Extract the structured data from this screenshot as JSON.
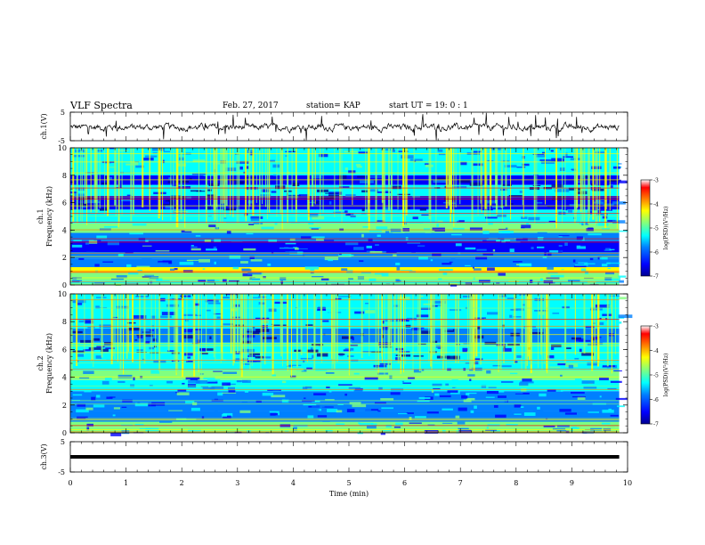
{
  "header": {
    "title": "VLF Spectra",
    "date": "Feb. 27, 2017",
    "station": "station= KAP",
    "start": "start  UT =   19: 0  : 1"
  },
  "chart_data": [
    {
      "type": "line",
      "panel": "waveform-ch1",
      "ylabel": "ch.1(V)",
      "ylim": [
        -5,
        5
      ],
      "y_ticks": [
        "5",
        "-5"
      ],
      "x_range_min": [
        0,
        9.85
      ],
      "description_values": "noisy waveform around -0.3 V",
      "line_color": "#000000"
    },
    {
      "type": "heatmap",
      "panel": "spectrogram-ch1",
      "ylabel_line1": "ch.1",
      "ylabel_line2": "Frequency (kHz)",
      "ylim": [
        0,
        10
      ],
      "y_ticks": [
        "0",
        "2",
        "4",
        "6",
        "8",
        "10"
      ],
      "x_range_min": [
        0,
        9.85
      ],
      "colorbar": {
        "label": "log(PSD)(V²/Hz)",
        "range": [
          -7,
          -3
        ],
        "ticks": [
          "-3",
          "-4",
          "-5",
          "-6",
          "-7"
        ]
      }
    },
    {
      "type": "heatmap",
      "panel": "spectrogram-ch2",
      "ylabel_line1": "ch.2",
      "ylabel_line2": "Frequency (kHz)",
      "ylim": [
        0,
        10
      ],
      "y_ticks": [
        "0",
        "2",
        "4",
        "6",
        "8",
        "10"
      ],
      "x_range_min": [
        0,
        9.85
      ],
      "colorbar": {
        "label": "log(PSD)(V²/Hz)",
        "range": [
          -7,
          -3
        ],
        "ticks": [
          "-3",
          "-4",
          "-5",
          "-6",
          "-7"
        ]
      }
    },
    {
      "type": "line",
      "panel": "waveform-ch3",
      "ylabel": "ch.3(V)",
      "ylim": [
        -5,
        5
      ],
      "y_ticks": [
        "5",
        "-5"
      ],
      "x_range_min": [
        0,
        9.85
      ],
      "constant_value": 0,
      "line_color": "#000000"
    }
  ],
  "x_axis": {
    "label": "Time (min)",
    "range": [
      0,
      10
    ],
    "ticks": [
      "0",
      "1",
      "2",
      "3",
      "4",
      "5",
      "6",
      "7",
      "8",
      "9",
      "10"
    ]
  },
  "colors": {
    "colormap": [
      "#000090",
      "#0000ff",
      "#0080ff",
      "#00ffff",
      "#80ff80",
      "#ffff00",
      "#ff8000",
      "#ff0000",
      "#ffffff"
    ]
  }
}
